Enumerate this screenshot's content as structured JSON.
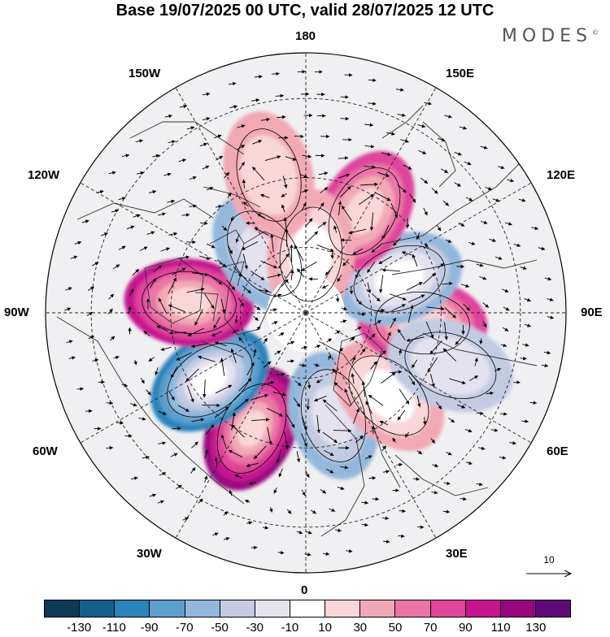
{
  "title": "Base 19/07/2025 00 UTC, valid 28/07/2025 12 UTC",
  "brand": "MODES",
  "brand_mark": "©",
  "longitude_labels": {
    "lon_180": "180",
    "lon_150w": "150W",
    "lon_150e": "150E",
    "lon_120w": "120W",
    "lon_120e": "120E",
    "lon_90w": "90W",
    "lon_90e": "90E",
    "lon_60w": "60W",
    "lon_60e": "60E",
    "lon_30w": "30W",
    "lon_30e": "30E",
    "lon_0": "0"
  },
  "vector_scale": {
    "label": "10"
  },
  "colorbar": {
    "colors": [
      "#0d3a58",
      "#155f8d",
      "#2a83ba",
      "#5b9fcd",
      "#93b8dc",
      "#c3cbe3",
      "#e5e2ef",
      "#ffffff",
      "#f9d6d8",
      "#f2a9b6",
      "#ea74a6",
      "#df459b",
      "#c5168f",
      "#97087f",
      "#5e0a78"
    ],
    "ticks": [
      "-130",
      "-110",
      "-90",
      "-70",
      "-50",
      "-30",
      "-10",
      "10",
      "30",
      "50",
      "70",
      "90",
      "110",
      "130"
    ]
  },
  "anomaly_centers": [
    {
      "name": "anom-ne-atlantic",
      "lon": -25,
      "lat": 52,
      "value": 115
    },
    {
      "name": "anom-labrador",
      "lon": -55,
      "lat": 55,
      "value": -110
    },
    {
      "name": "anom-hudson",
      "lon": -95,
      "lat": 55,
      "value": 90
    },
    {
      "name": "anom-alaska-north",
      "lon": -145,
      "lat": 68,
      "value": -55
    },
    {
      "name": "anom-europe",
      "lon": 15,
      "lat": 58,
      "value": -55
    },
    {
      "name": "anom-caspian",
      "lon": 45,
      "lat": 55,
      "value": 45
    },
    {
      "name": "anom-west-siberia",
      "lon": 85,
      "lat": 55,
      "value": 75
    },
    {
      "name": "anom-central-siberia",
      "lon": 110,
      "lat": 60,
      "value": -60
    },
    {
      "name": "anom-east-siberia",
      "lon": 150,
      "lat": 55,
      "value": 75
    },
    {
      "name": "anom-chukchi",
      "lon": 175,
      "lat": 72,
      "value": 40
    },
    {
      "name": "anom-kazakhstan",
      "lon": 70,
      "lat": 45,
      "value": -35
    },
    {
      "name": "anom-north-pacific",
      "lon": -165,
      "lat": 48,
      "value": 30
    }
  ]
}
